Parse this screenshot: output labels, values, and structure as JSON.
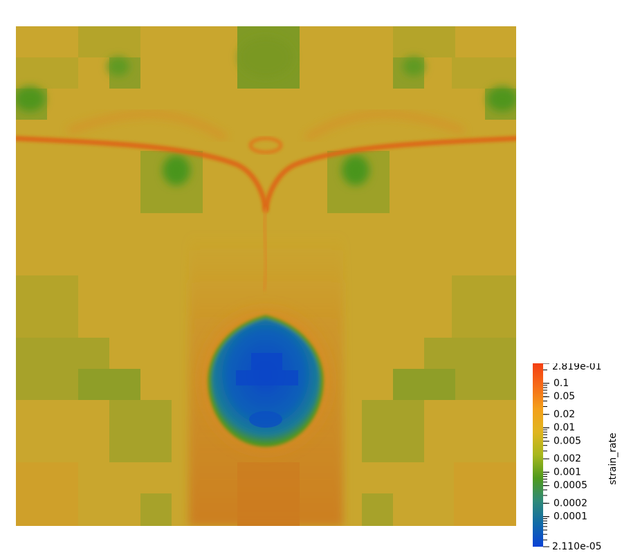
{
  "field": {
    "palette": {
      "yellow": "#c8a22a",
      "olive": "#a7a22a",
      "green": "#7f9a25",
      "deep_green": "#4f951e",
      "orange": "#d08a25",
      "red_orange": "#dd6818",
      "blue": "#0a5fb8",
      "deep_blue": "#0b46c7"
    }
  },
  "colorbar": {
    "title": "strain_rate",
    "max_label": "2.819e-01",
    "min_label": "2.110e-05",
    "scale": "log",
    "range": [
      2.11e-05,
      0.2819
    ],
    "tick_labels": [
      "0.1",
      "0.05",
      "0.02",
      "0.01",
      "0.005",
      "0.002",
      "0.001",
      "0.0005",
      "0.0002",
      "0.0001"
    ],
    "tick_values": [
      0.1,
      0.05,
      0.02,
      0.01,
      0.005,
      0.002,
      0.001,
      0.0005,
      0.0002,
      0.0001
    ],
    "colors": [
      "#0a42d6",
      "#0f6aa8",
      "#2f8a78",
      "#4f9a1c",
      "#a7b71c",
      "#e0b51f",
      "#f3a01a",
      "#f66c18",
      "#f43f12"
    ]
  }
}
